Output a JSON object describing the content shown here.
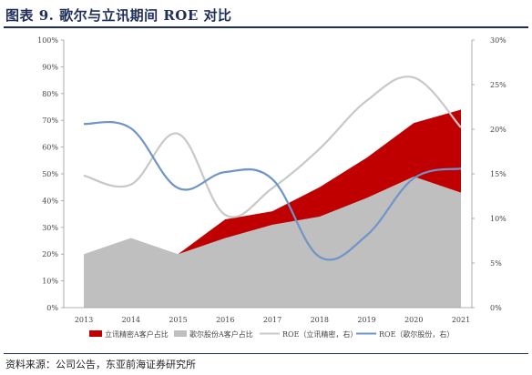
{
  "title": "图表 9.   歌尔与立讯期间 ROE 对比",
  "source": "资料来源：公司公告，东亚前海证券研究所",
  "chart_data": {
    "type": "area",
    "categories": [
      "2013",
      "2014",
      "2015",
      "2016",
      "2017",
      "2018",
      "2019",
      "2020",
      "2021"
    ],
    "y_left": {
      "ticks": [
        "0%",
        "10%",
        "20%",
        "30%",
        "40%",
        "50%",
        "60%",
        "70%",
        "80%",
        "90%",
        "100%"
      ],
      "range": [
        0,
        100
      ]
    },
    "y_right": {
      "ticks": [
        "0%",
        "5%",
        "10%",
        "15%",
        "20%",
        "25%",
        "30%"
      ],
      "range": [
        0,
        30
      ]
    },
    "series": [
      {
        "name": "立讯精密A客户占比",
        "kind": "area",
        "axis": "left",
        "color": "#c00000",
        "values": [
          null,
          null,
          20,
          33,
          36,
          45,
          56,
          69,
          74
        ]
      },
      {
        "name": "歌尔股份A客户占比",
        "kind": "area",
        "axis": "left",
        "color": "#bfbfbf",
        "values": [
          20,
          26,
          20,
          26,
          31,
          34,
          41,
          49,
          43
        ]
      },
      {
        "name": "ROE（立讯精密，右）",
        "kind": "line",
        "axis": "right",
        "color": "#c8c8c8",
        "values": [
          14.8,
          13.8,
          19.5,
          10.4,
          13.4,
          17.8,
          23.2,
          25.8,
          20.2
        ]
      },
      {
        "name": "ROE（歌尔股份，右）",
        "kind": "line",
        "axis": "right",
        "color": "#7094c8",
        "values": [
          20.6,
          20.1,
          13.4,
          15.2,
          14.4,
          5.7,
          8.1,
          14.5,
          15.6
        ]
      }
    ]
  }
}
